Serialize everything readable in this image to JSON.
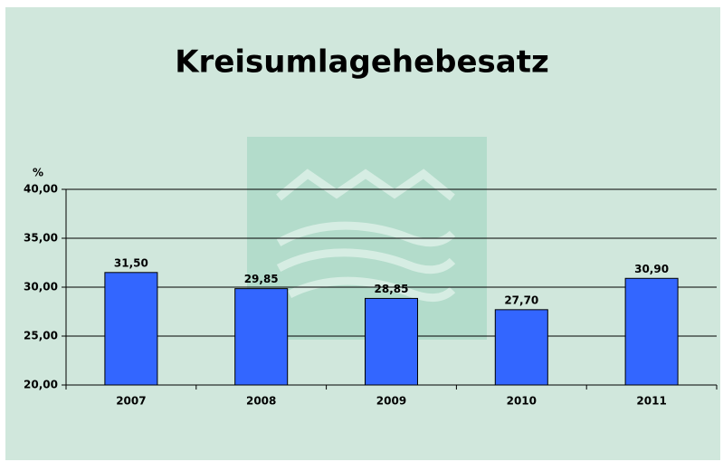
{
  "chart_data": {
    "type": "bar",
    "title": "Kreisumlagehebesatz",
    "y_label": "%",
    "categories": [
      "2007",
      "2008",
      "2009",
      "2010",
      "2011"
    ],
    "values": [
      31.5,
      29.85,
      28.85,
      27.7,
      30.9
    ],
    "value_labels": [
      "31,50",
      "29,85",
      "28,85",
      "27,70",
      "30,90"
    ],
    "color": "#3366ff",
    "ylim": [
      20,
      40
    ],
    "yticks": [
      {
        "value": 20,
        "label": "20,00"
      },
      {
        "value": 25,
        "label": "25,00"
      },
      {
        "value": 30,
        "label": "30,00"
      },
      {
        "value": 35,
        "label": "35,00"
      },
      {
        "value": 40,
        "label": "40,00"
      }
    ],
    "grid": true
  }
}
